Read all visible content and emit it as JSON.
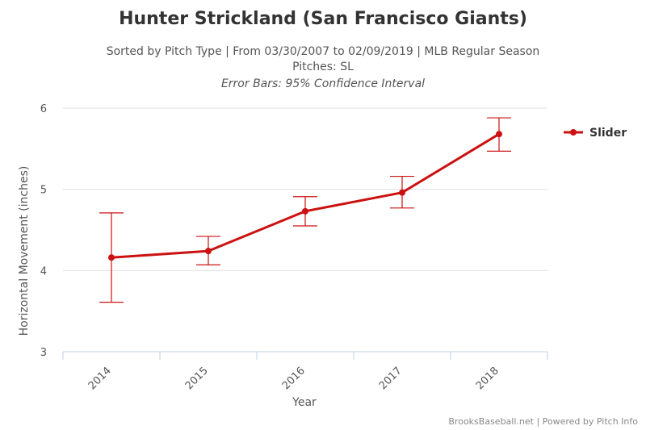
{
  "chart_data": {
    "type": "line",
    "title": "Hunter Strickland (San Francisco Giants)",
    "subtitle_lines": [
      "Sorted by Pitch Type | From 03/30/2007 to 02/09/2019 | MLB Regular Season",
      "Pitches: SL"
    ],
    "subtitle_italic": "Error Bars: 95% Confidence Interval",
    "xlabel": "Year",
    "ylabel": "Horizontal Movement (inches)",
    "categories": [
      "2014",
      "2015",
      "2016",
      "2017",
      "2018"
    ],
    "ylim": [
      3,
      6
    ],
    "yticks": [
      3,
      4,
      5,
      6
    ],
    "grid": true,
    "legend_position": "right",
    "series": [
      {
        "name": "Slider",
        "color": "#cc1111",
        "values": [
          4.16,
          4.24,
          4.73,
          4.96,
          5.68
        ],
        "error_low": [
          3.61,
          4.07,
          4.55,
          4.77,
          5.47
        ],
        "error_high": [
          4.71,
          4.42,
          4.91,
          5.16,
          5.88
        ]
      }
    ],
    "credits": "BrooksBaseball.net | Powered by Pitch Info"
  }
}
